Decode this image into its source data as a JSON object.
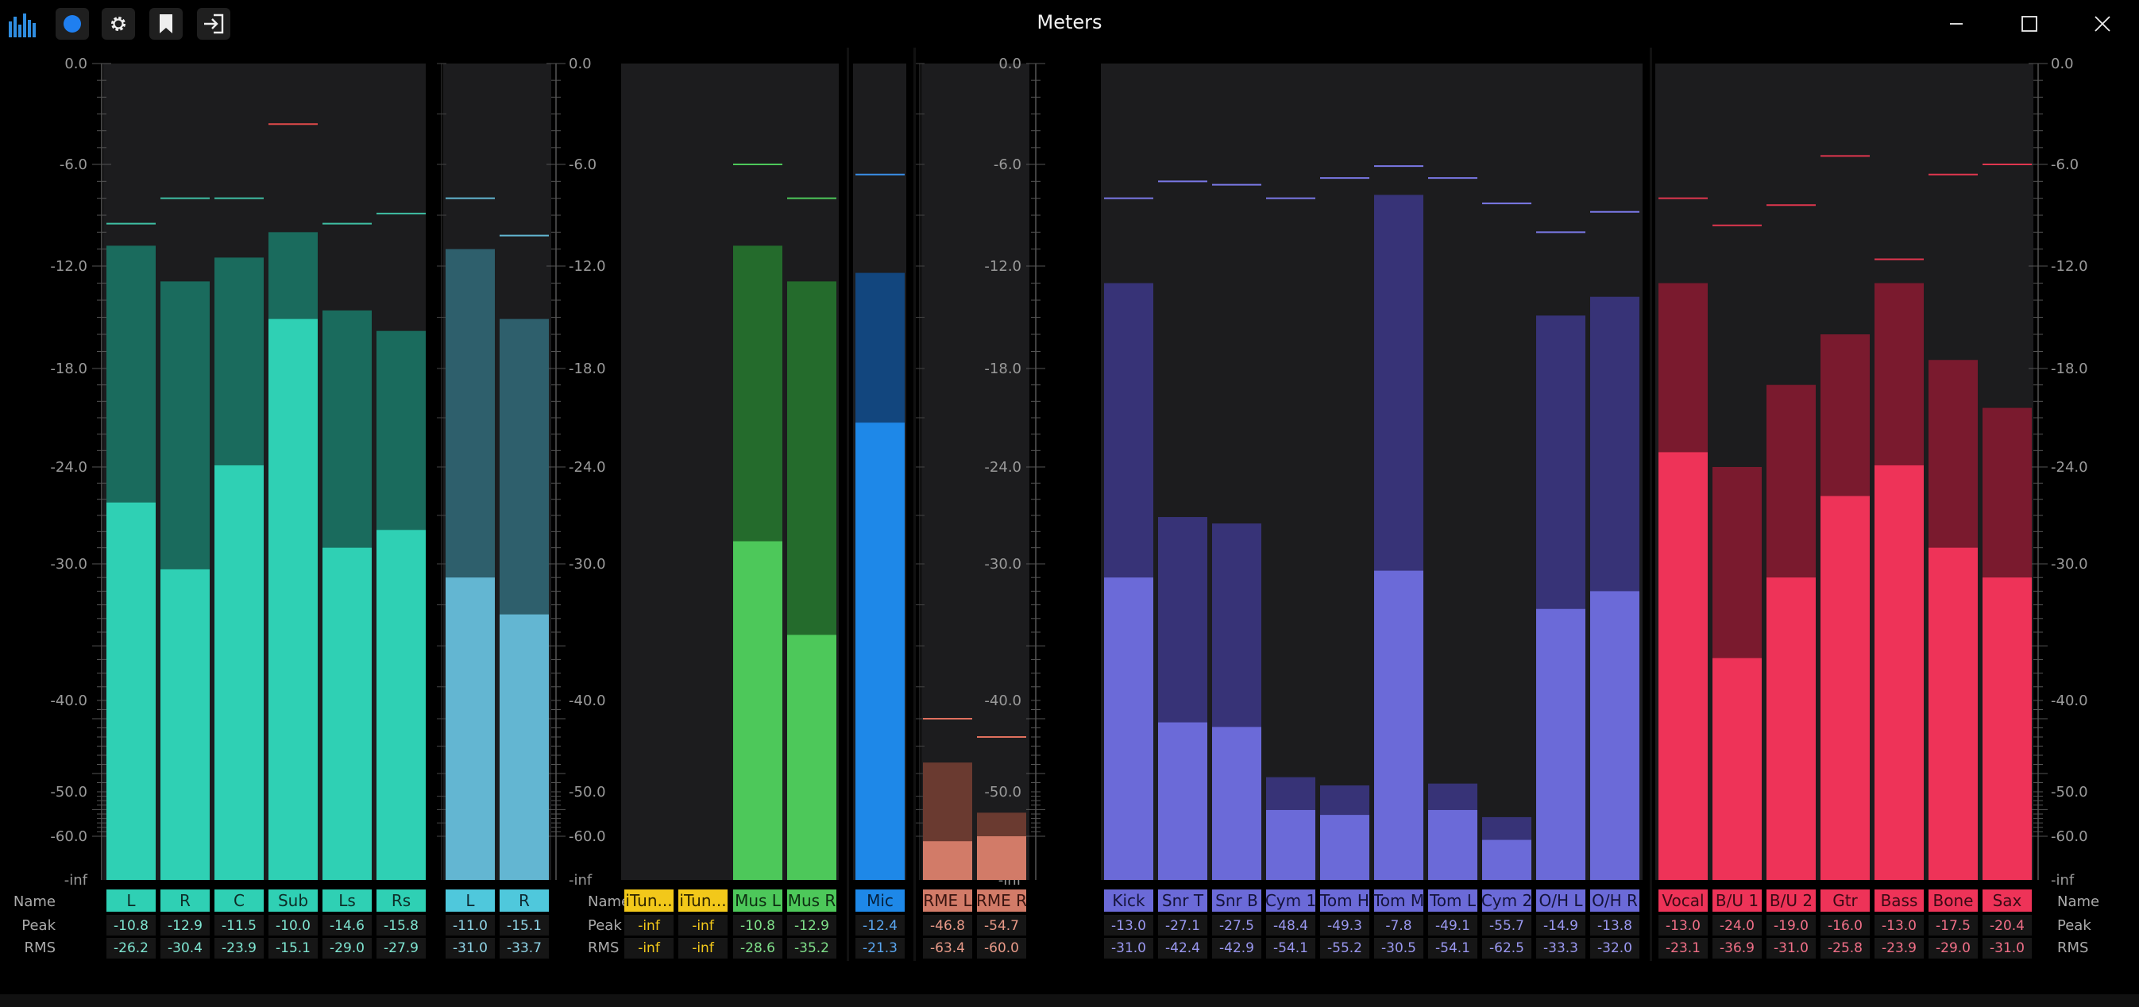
{
  "window": {
    "title": "Meters",
    "icons": {
      "app": "audio-meter-logo-icon",
      "record": "record-dot-icon",
      "settings": "gear-icon",
      "bookmark": "bookmark-icon",
      "enter": "sign-in-icon",
      "minimize": "minimize-icon",
      "maximize": "maximize-icon",
      "close": "close-icon"
    }
  },
  "scale": {
    "ticks": [
      "0.0",
      "-6.0",
      "-12.0",
      "-18.0",
      "-24.0",
      "-30.0",
      "-40.0",
      "-50.0",
      "-60.0",
      "-inf"
    ],
    "tick_db": [
      0,
      -6,
      -12,
      -18,
      -24,
      -30,
      -40,
      -50,
      -60,
      -999
    ]
  },
  "row_labels": {
    "name": "Name",
    "peak": "Peak",
    "rms": "RMS"
  },
  "groups": [
    {
      "colors": {
        "dark": "#1a6b5d",
        "bright": "#2fd0b4",
        "peakline": "#3fbfa4",
        "label_bg": "#2fd0b4",
        "label_fg": "#0d2d27",
        "text": "#7fe6d2"
      },
      "channels": [
        {
          "name": "L",
          "peak": "-10.8",
          "rms": "-26.2",
          "hold": -9.5
        },
        {
          "name": "R",
          "peak": "-12.9",
          "rms": "-30.4",
          "hold": -8.0
        },
        {
          "name": "C",
          "peak": "-11.5",
          "rms": "-23.9",
          "hold": -8.0
        },
        {
          "name": "Sub",
          "peak": "-10.0",
          "rms": "-15.1",
          "hold": -3.6,
          "hold_color": "#e24a4a"
        },
        {
          "name": "Ls",
          "peak": "-14.6",
          "rms": "-29.0",
          "hold": -9.5
        },
        {
          "name": "Rs",
          "peak": "-15.8",
          "rms": "-27.9",
          "hold": -8.9
        }
      ]
    },
    {
      "colors": {
        "dark": "#2e5f6c",
        "bright": "#63b6d2",
        "peakline": "#63b6d2",
        "label_bg": "#4fc8dc",
        "label_fg": "#0d2a32",
        "text": "#8fd4e6"
      },
      "channels": [
        {
          "name": "L",
          "peak": "-11.0",
          "rms": "-31.0",
          "hold": -8.0
        },
        {
          "name": "R",
          "peak": "-15.1",
          "rms": "-33.7",
          "hold": -10.2
        }
      ]
    },
    {
      "colors": {
        "dark": "#5a5010",
        "bright": "#f2c81a",
        "peakline": "#f2c81a",
        "label_bg": "#f2c81a",
        "label_fg": "#2d2400",
        "text": "#f2c81a"
      },
      "channels": [
        {
          "name": "iTun...",
          "peak": "-inf",
          "rms": "-inf",
          "hold": null
        },
        {
          "name": "iTun...",
          "peak": "-inf",
          "rms": "-inf",
          "hold": null
        }
      ]
    },
    {
      "colors": {
        "dark": "#246b2c",
        "bright": "#4dc85a",
        "peakline": "#4dc85a",
        "label_bg": "#4dc85a",
        "label_fg": "#0d2d11",
        "text": "#7fe08a"
      },
      "channels": [
        {
          "name": "Mus L",
          "peak": "-10.8",
          "rms": "-28.6",
          "hold": -6.0
        },
        {
          "name": "Mus R",
          "peak": "-12.9",
          "rms": "-35.2",
          "hold": -8.0
        }
      ]
    },
    {
      "colors": {
        "dark": "#12467e",
        "bright": "#1e88e8",
        "peakline": "#3a8ee8",
        "label_bg": "#1e88e8",
        "label_fg": "#06203a",
        "text": "#5aa6f0"
      },
      "channels": [
        {
          "name": "Mic",
          "peak": "-12.4",
          "rms": "-21.3",
          "hold": -6.6
        }
      ]
    },
    {
      "colors": {
        "dark": "#6a3a30",
        "bright": "#d27b68",
        "peakline": "#e0705e",
        "label_bg": "#d27b68",
        "label_fg": "#3a1510",
        "text": "#e89a88"
      },
      "channels": [
        {
          "name": "RME L",
          "peak": "-46.8",
          "rms": "-63.4",
          "hold": -42.0
        },
        {
          "name": "RME R",
          "peak": "-54.7",
          "rms": "-60.0",
          "hold": -44.0
        }
      ]
    },
    {
      "colors": {
        "dark": "#373377",
        "bright": "#6b6ad8",
        "peakline": "#7a78e6",
        "label_bg": "#6b6ad8",
        "label_fg": "#14133a",
        "text": "#9a98f0"
      },
      "channels": [
        {
          "name": "Kick",
          "peak": "-13.0",
          "rms": "-31.0",
          "hold": -8.0
        },
        {
          "name": "Snr T",
          "peak": "-27.1",
          "rms": "-42.4",
          "hold": -7.0
        },
        {
          "name": "Snr B",
          "peak": "-27.5",
          "rms": "-42.9",
          "hold": -7.2
        },
        {
          "name": "Cym 1",
          "peak": "-48.4",
          "rms": "-54.1",
          "hold": -8.0
        },
        {
          "name": "Tom H",
          "peak": "-49.3",
          "rms": "-55.2",
          "hold": -6.8
        },
        {
          "name": "Tom M",
          "peak": "-7.8",
          "rms": "-30.5",
          "hold": -6.1
        },
        {
          "name": "Tom L",
          "peak": "-49.1",
          "rms": "-54.1",
          "hold": -6.8
        },
        {
          "name": "Cym 2",
          "peak": "-55.7",
          "rms": "-62.5",
          "hold": -8.3
        },
        {
          "name": "O/H L",
          "peak": "-14.9",
          "rms": "-33.3",
          "hold": -10.0
        },
        {
          "name": "O/H R",
          "peak": "-13.8",
          "rms": "-32.0",
          "hold": -8.8
        }
      ]
    },
    {
      "colors": {
        "dark": "#7a1a2e",
        "bright": "#ee3358",
        "peakline": "#e0364f",
        "label_bg": "#ee3358",
        "label_fg": "#3a0a14",
        "text": "#f27088"
      },
      "channels": [
        {
          "name": "Vocal",
          "peak": "-13.0",
          "rms": "-23.1",
          "hold": -8.0
        },
        {
          "name": "B/U 1",
          "peak": "-24.0",
          "rms": "-36.9",
          "hold": -9.6
        },
        {
          "name": "B/U 2",
          "peak": "-19.0",
          "rms": "-31.0",
          "hold": -8.4
        },
        {
          "name": "Gtr",
          "peak": "-16.0",
          "rms": "-25.8",
          "hold": -5.5
        },
        {
          "name": "Bass",
          "peak": "-13.0",
          "rms": "-23.9",
          "hold": -11.6
        },
        {
          "name": "Bone",
          "peak": "-17.5",
          "rms": "-29.0",
          "hold": -6.6
        },
        {
          "name": "Sax",
          "peak": "-20.4",
          "rms": "-31.0",
          "hold": -6.0
        }
      ]
    }
  ]
}
